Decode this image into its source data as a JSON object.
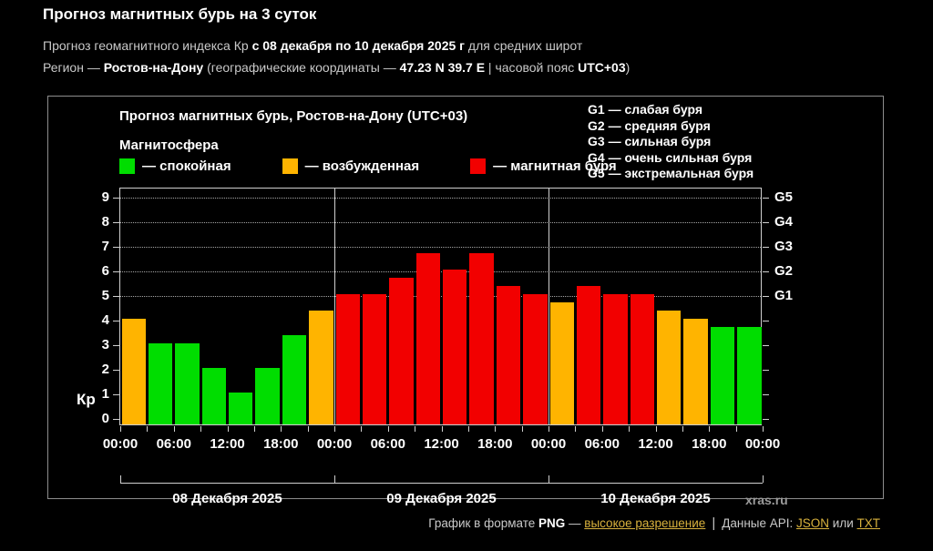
{
  "header": {
    "title": "Прогноз магнитных бурь на 3 суток",
    "subtitle_prefix": "Прогноз геомагнитного индекса Кр ",
    "subtitle_bold": "с 08 декабря по 10 декабря 2025 г",
    "subtitle_suffix": " для средних широт",
    "region_label": "Регион — ",
    "region_name": "Ростов-на-Дону",
    "coords_prefix": " (географические координаты — ",
    "coords": "47.23 N 39.7 E",
    "tz_prefix": " | часовой пояс ",
    "tz": "UTC+03",
    "close_paren": ")"
  },
  "chart": {
    "title": "Прогноз магнитных бурь, Ростов-на-Дону (UTC+03)",
    "legend_title": "Магнитосфера",
    "legend": [
      {
        "state": "quiet",
        "label": "— спокойная",
        "color": "#00dd00"
      },
      {
        "state": "excited",
        "label": "— возбужденная",
        "color": "#ffb400"
      },
      {
        "state": "storm",
        "label": "— магнитная буря",
        "color": "#f20000"
      }
    ],
    "g_legend": [
      "G1 — слабая буря",
      "G2 — средняя буря",
      "G3 — сильная буря",
      "G4 — очень сильная буря",
      "G5 — экстремальная буря"
    ],
    "watermark": "xras.ru"
  },
  "chart_data": {
    "type": "bar",
    "title": "Прогноз магнитных бурь, Ростов-на-Дону (UTC+03)",
    "ylabel": "Кр",
    "ylim": [
      0,
      9
    ],
    "yticks": [
      0,
      1,
      2,
      3,
      4,
      5,
      6,
      7,
      8,
      9
    ],
    "gridlines_at": [
      5,
      6,
      7,
      8,
      9
    ],
    "right_axis": [
      {
        "kp": 5,
        "label": "G1"
      },
      {
        "kp": 6,
        "label": "G2"
      },
      {
        "kp": 7,
        "label": "G3"
      },
      {
        "kp": 8,
        "label": "G4"
      },
      {
        "kp": 9,
        "label": "G5"
      }
    ],
    "interval_hours": 3,
    "x_tick_labels": [
      "00:00",
      "06:00",
      "12:00",
      "18:00",
      "00:00",
      "06:00",
      "12:00",
      "18:00",
      "00:00",
      "06:00",
      "12:00",
      "18:00",
      "00:00"
    ],
    "state_colors": {
      "quiet": "#00dd00",
      "excited": "#ffb400",
      "storm": "#f20000"
    },
    "days": [
      {
        "date": "08 Декабря 2025",
        "values": [
          4.0,
          3.0,
          3.0,
          2.0,
          1.0,
          2.0,
          3.33,
          4.33
        ],
        "states": [
          "excited",
          "quiet",
          "quiet",
          "quiet",
          "quiet",
          "quiet",
          "quiet",
          "excited"
        ]
      },
      {
        "date": "09 Декабря 2025",
        "values": [
          5.0,
          5.0,
          5.67,
          6.67,
          6.0,
          6.67,
          5.33,
          5.0
        ],
        "states": [
          "storm",
          "storm",
          "storm",
          "storm",
          "storm",
          "storm",
          "storm",
          "storm"
        ]
      },
      {
        "date": "10 Декабря 2025",
        "values": [
          4.67,
          5.33,
          5.0,
          5.0,
          4.33,
          4.0,
          3.67,
          3.67
        ],
        "states": [
          "excited",
          "storm",
          "storm",
          "storm",
          "excited",
          "excited",
          "quiet",
          "quiet"
        ]
      }
    ]
  },
  "footer": {
    "text_prefix": "График в формате ",
    "format": "PNG",
    "dash": " — ",
    "hi_res_link": "высокое разрешение",
    "separator": "|",
    "api_label": "Данные API: ",
    "json_link": "JSON",
    "or_word": " или ",
    "txt_link": "TXT"
  }
}
